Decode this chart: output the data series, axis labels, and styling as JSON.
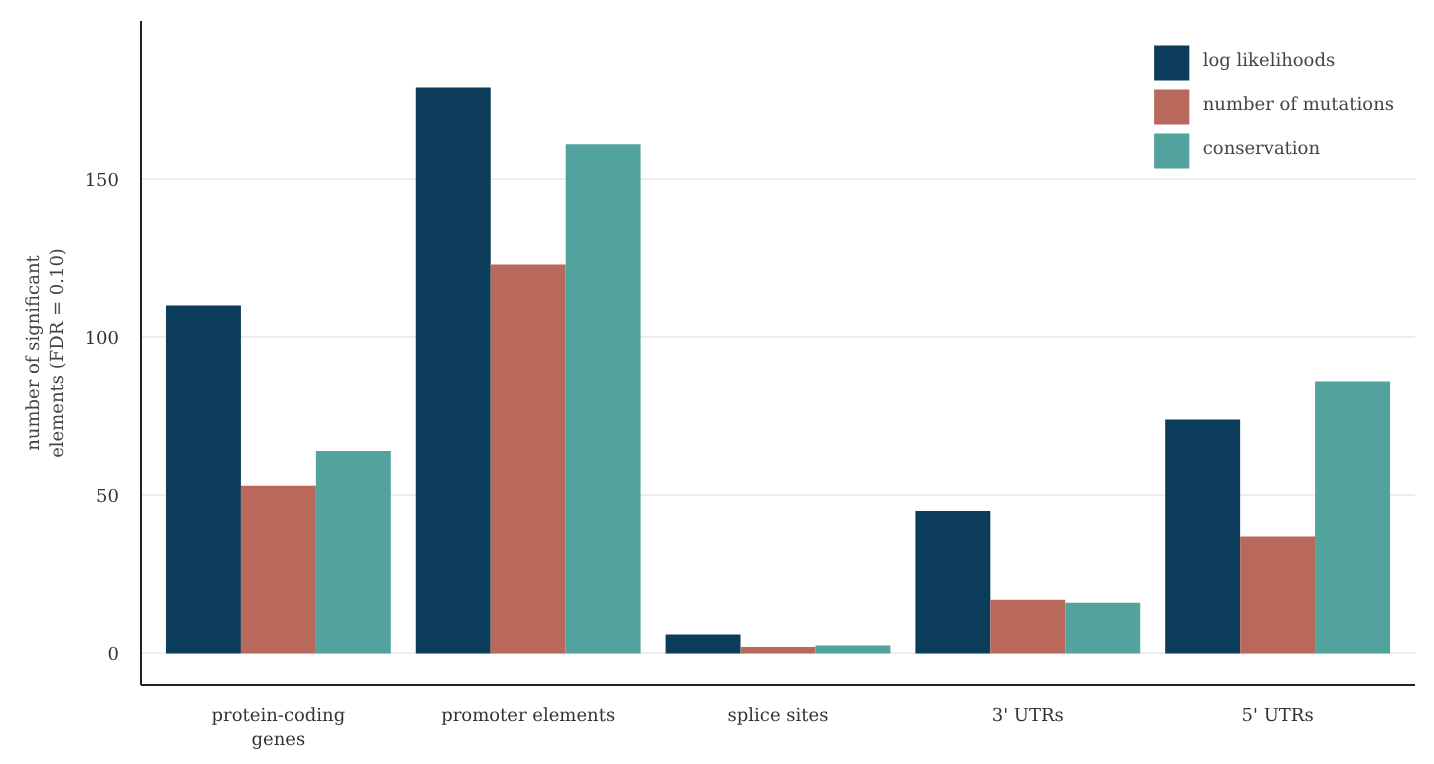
{
  "chart_data": {
    "type": "bar",
    "ylabel": "number of significant\nelements (FDR = 0.10)",
    "categories": [
      "protein-coding\ngenes",
      "promoter elements",
      "splice sites",
      "3' UTRs",
      "5' UTRs"
    ],
    "series": [
      {
        "name": "log likelihoods",
        "color": "#0b3d5a",
        "values": [
          110,
          179,
          6,
          45,
          74
        ]
      },
      {
        "name": "number of mutations",
        "color": "#b8695c",
        "values": [
          53,
          123,
          2,
          17,
          37
        ]
      },
      {
        "name": "conservation",
        "color": "#52a39e",
        "values": [
          64,
          161,
          2.5,
          16,
          86
        ]
      }
    ],
    "ylim": [
      -10,
      200
    ],
    "yticks": [
      0,
      50,
      100,
      150
    ],
    "grid": "y",
    "legend": "top right"
  }
}
